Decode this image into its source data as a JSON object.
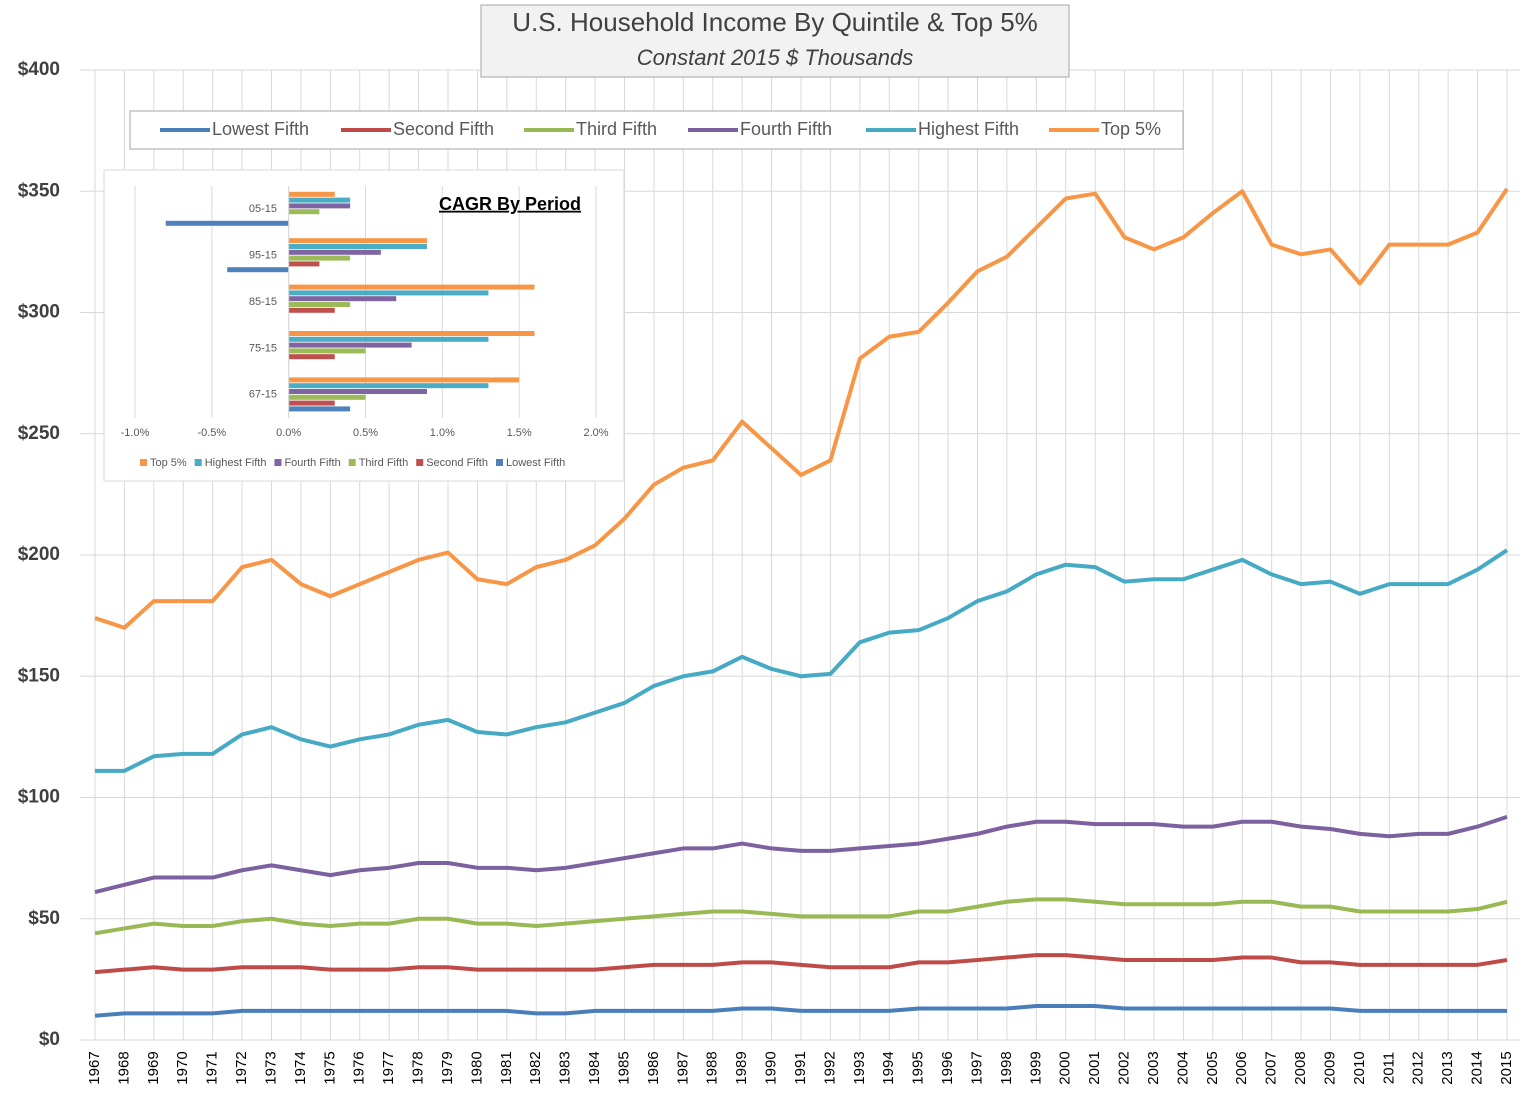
{
  "chart_data": [
    {
      "type": "line",
      "title": "U.S. Household Income By Quintile & Top 5%",
      "subtitle": "Constant 2015 $ Thousands",
      "categories": [
        "1967",
        "1968",
        "1969",
        "1970",
        "1971",
        "1972",
        "1973",
        "1974",
        "1975",
        "1976",
        "1977",
        "1978",
        "1979",
        "1980",
        "1981",
        "1982",
        "1983",
        "1984",
        "1985",
        "1986",
        "1987",
        "1988",
        "1989",
        "1990",
        "1991",
        "1992",
        "1993",
        "1994",
        "1995",
        "1996",
        "1997",
        "1998",
        "1999",
        "2000",
        "2001",
        "2002",
        "2003",
        "2004",
        "2005",
        "2006",
        "2007",
        "2008",
        "2009",
        "2010",
        "2011",
        "2012",
        "2013",
        "2014",
        "2015"
      ],
      "ylim": [
        0,
        400
      ],
      "yticks": [
        {
          "value": 0,
          "label": "$0"
        },
        {
          "value": 50,
          "label": "$50"
        },
        {
          "value": 100,
          "label": "$100"
        },
        {
          "value": 150,
          "label": "$150"
        },
        {
          "value": 200,
          "label": "$200"
        },
        {
          "value": 250,
          "label": "$250"
        },
        {
          "value": 300,
          "label": "$300"
        },
        {
          "value": 350,
          "label": "$350"
        },
        {
          "value": 400,
          "label": "$400"
        }
      ],
      "grid": true,
      "legend": "top",
      "series": [
        {
          "name": "Lowest Fifth",
          "color": "#4a7ebb",
          "values": [
            10,
            11,
            11,
            11,
            11,
            12,
            12,
            12,
            12,
            12,
            12,
            12,
            12,
            12,
            12,
            11,
            11,
            12,
            12,
            12,
            12,
            12,
            13,
            13,
            12,
            12,
            12,
            12,
            13,
            13,
            13,
            13,
            14,
            14,
            14,
            13,
            13,
            13,
            13,
            13,
            13,
            13,
            13,
            12,
            12,
            12,
            12,
            12,
            12
          ]
        },
        {
          "name": "Second Fifth",
          "color": "#be4b48",
          "values": [
            28,
            29,
            30,
            29,
            29,
            30,
            30,
            30,
            29,
            29,
            29,
            30,
            30,
            29,
            29,
            29,
            29,
            29,
            30,
            31,
            31,
            31,
            32,
            32,
            31,
            30,
            30,
            30,
            32,
            32,
            33,
            34,
            35,
            35,
            34,
            33,
            33,
            33,
            33,
            34,
            34,
            32,
            32,
            31,
            31,
            31,
            31,
            31,
            33
          ]
        },
        {
          "name": "Third Fifth",
          "color": "#98b954",
          "values": [
            44,
            46,
            48,
            47,
            47,
            49,
            50,
            48,
            47,
            48,
            48,
            50,
            50,
            48,
            48,
            47,
            48,
            49,
            50,
            51,
            52,
            53,
            53,
            52,
            51,
            51,
            51,
            51,
            53,
            53,
            55,
            57,
            58,
            58,
            57,
            56,
            56,
            56,
            56,
            57,
            57,
            55,
            55,
            53,
            53,
            53,
            53,
            54,
            57
          ]
        },
        {
          "name": "Fourth Fifth",
          "color": "#7d60a0",
          "values": [
            61,
            64,
            67,
            67,
            67,
            70,
            72,
            70,
            68,
            70,
            71,
            73,
            73,
            71,
            71,
            70,
            71,
            73,
            75,
            77,
            79,
            79,
            81,
            79,
            78,
            78,
            79,
            80,
            81,
            83,
            85,
            88,
            90,
            90,
            89,
            89,
            89,
            88,
            88,
            90,
            90,
            88,
            87,
            85,
            84,
            85,
            85,
            88,
            92
          ]
        },
        {
          "name": "Highest Fifth",
          "color": "#46aac5",
          "values": [
            111,
            111,
            117,
            118,
            118,
            126,
            129,
            124,
            121,
            124,
            126,
            130,
            132,
            127,
            126,
            129,
            131,
            135,
            139,
            146,
            150,
            152,
            158,
            153,
            150,
            151,
            164,
            168,
            169,
            174,
            181,
            185,
            192,
            196,
            195,
            189,
            190,
            190,
            194,
            198,
            192,
            188,
            189,
            184,
            188,
            188,
            188,
            194,
            202
          ]
        },
        {
          "name": "Top 5%",
          "color": "#f79646",
          "values": [
            174,
            170,
            181,
            181,
            181,
            195,
            198,
            188,
            183,
            188,
            193,
            198,
            201,
            190,
            188,
            195,
            198,
            204,
            215,
            229,
            236,
            239,
            255,
            244,
            233,
            239,
            281,
            290,
            292,
            304,
            317,
            323,
            335,
            347,
            349,
            331,
            326,
            331,
            341,
            350,
            328,
            324,
            326,
            312,
            328,
            328,
            328,
            333,
            351
          ]
        }
      ]
    },
    {
      "type": "hbar",
      "title": "CAGR By Period",
      "categories": [
        "05-15",
        "95-15",
        "85-15",
        "75-15",
        "67-15"
      ],
      "xlim": [
        -1.0,
        2.0
      ],
      "xticks": [
        {
          "value": -1.0,
          "label": "-1.0%"
        },
        {
          "value": -0.5,
          "label": "-0.5%"
        },
        {
          "value": 0,
          "label": "0.0%"
        },
        {
          "value": 0.5,
          "label": "0.5%"
        },
        {
          "value": 1.0,
          "label": "1.0%"
        },
        {
          "value": 1.5,
          "label": "1.5%"
        },
        {
          "value": 2.0,
          "label": "2.0%"
        }
      ],
      "grid": true,
      "legend": "bottom",
      "series": [
        {
          "name": "Top 5%",
          "color": "#f79646",
          "values": [
            0.3,
            0.9,
            1.6,
            1.6,
            1.5
          ]
        },
        {
          "name": "Highest Fifth",
          "color": "#4bacc6",
          "values": [
            0.4,
            0.9,
            1.3,
            1.3,
            1.3
          ]
        },
        {
          "name": "Fourth Fifth",
          "color": "#8064a2",
          "values": [
            0.4,
            0.6,
            0.7,
            0.8,
            0.9
          ]
        },
        {
          "name": "Third Fifth",
          "color": "#9bbb59",
          "values": [
            0.2,
            0.4,
            0.4,
            0.5,
            0.5
          ]
        },
        {
          "name": "Second Fifth",
          "color": "#c0504d",
          "values": [
            0,
            0.2,
            0.3,
            0.3,
            0.3
          ]
        },
        {
          "name": "Lowest Fifth",
          "color": "#4f81bd",
          "values": [
            -0.8,
            -0.4,
            0,
            0,
            0.4
          ]
        }
      ]
    }
  ]
}
